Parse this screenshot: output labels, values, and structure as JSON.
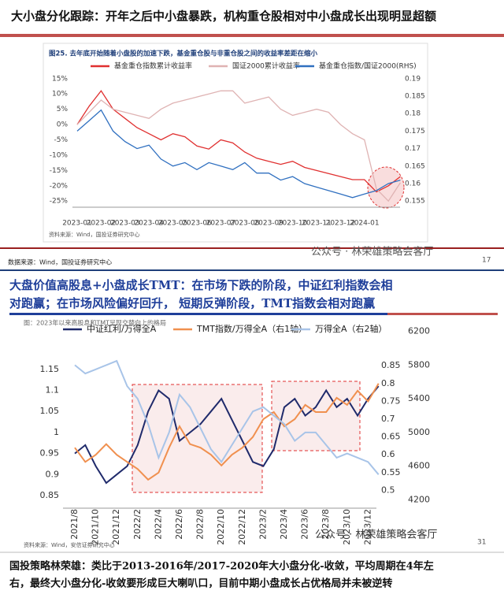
{
  "texts": {
    "title": "大小盘分化跟踪：开年之后中小盘暴跌，机构重仓股相对中小盘成长出现明显超额",
    "data_source": "数据来源：Wind，国投证券研究中心",
    "mid_title_1": "大盘价值高股息+小盘成长TMT：在市场下跌的阶段，中证红利指数会相",
    "mid_title_2": "对跑赢；在市场风险偏好回升， 短期反弹阶段，TMT指数会相对跑赢",
    "watermark": "公众号 · 林荣雄策略会客厅",
    "bottom_1": "国投策略林荣雄：类比于2013-2016年/2017-2020年大小盘分化-收敛，平均周期在4年左",
    "bottom_2": "右，最终大小盘分化-收敛要形成巨大喇叭口，目前中期小盘成长占优格局并未被逆转"
  },
  "chart_data": [
    {
      "type": "line",
      "title": "图25. 去年底开始随着小盘股的加速下跌，基金重仓股与非重仓股之间的收益率差距在缩小",
      "source": "资料来源：Wind，国投证券研究中心",
      "page": "17",
      "categories": [
        "2023-01",
        null,
        "2023-02",
        null,
        "2023-03",
        null,
        "2023-04",
        null,
        "2023-05",
        null,
        "2023-06",
        null,
        "2023-07",
        null,
        "2023-08",
        null,
        "2023-09",
        null,
        "2023-10",
        null,
        "2023-11",
        null,
        "2023-12",
        null,
        "2024-01",
        null,
        null,
        null
      ],
      "ylim": [
        -27,
        17
      ],
      "yticks": [
        {
          "value": 15,
          "label": "15%"
        },
        {
          "value": 10,
          "label": "10%"
        },
        {
          "value": 5,
          "label": "5%"
        },
        {
          "value": 0,
          "label": "0%"
        },
        {
          "value": -5,
          "label": "-5%"
        },
        {
          "value": -10,
          "label": "-10%"
        },
        {
          "value": -15,
          "label": "-15%"
        },
        {
          "value": -20,
          "label": "-20%"
        },
        {
          "value": -25,
          "label": "-25%"
        }
      ],
      "y2lim": [
        0.15325,
        0.19175
      ],
      "y2ticks": [
        0.19,
        0.185,
        0.18,
        0.175,
        0.17,
        0.165,
        0.16,
        0.155
      ],
      "series": [
        {
          "name": "基金重仓指数累计收益率",
          "color": "#e03030",
          "values": [
            0,
            6,
            11,
            5,
            2,
            -1,
            -3,
            -5,
            -3,
            -4,
            -7,
            -8,
            -5,
            -6,
            -9,
            -11,
            -12,
            -13,
            -12,
            -14,
            -15,
            -16,
            -17,
            -18,
            -18,
            -22,
            -20,
            -17
          ]
        },
        {
          "name": "国证2000累计收益率",
          "color": "#dfb3b3",
          "values": [
            0,
            4,
            8,
            5,
            4,
            3,
            2,
            5,
            7,
            8,
            9,
            10,
            11,
            11,
            7,
            8,
            9,
            5,
            3,
            4,
            5,
            4,
            0,
            -3,
            -5,
            -21,
            -25,
            -19
          ]
        },
        {
          "name": "基金重仓指数/国证2000(RHS)",
          "color": "#3070c0",
          "axis": "y2",
          "values": [
            0.175,
            0.178,
            0.181,
            0.175,
            0.172,
            0.17,
            0.171,
            0.167,
            0.165,
            0.166,
            0.164,
            0.166,
            0.165,
            0.164,
            0.166,
            0.163,
            0.163,
            0.161,
            0.162,
            0.16,
            0.159,
            0.158,
            0.157,
            0.156,
            0.157,
            0.158,
            0.16,
            0.161
          ]
        }
      ]
    },
    {
      "type": "line",
      "title": "图：2023年以来高股息和TMT呈现交替向上的格局",
      "source": "资料来源：Wind，安信证券研究中心",
      "page": "31",
      "categories": [
        "2021/8",
        null,
        "2021/10",
        null,
        "2021/12",
        null,
        "2022/2",
        null,
        "2022/4",
        null,
        "2022/6",
        null,
        "2022/8",
        null,
        "2022/10",
        null,
        "2022/12",
        null,
        "2023/2",
        null,
        "2023/4",
        null,
        "2023/6",
        null,
        "2023/8",
        null,
        "2023/10",
        null,
        "2023/12",
        null
      ],
      "ylim": [
        0.82,
        1.26
      ],
      "yticks": [
        1.15,
        1.1,
        1.05,
        1,
        0.95,
        0.9,
        0.85
      ],
      "y2lim": [
        0.45,
        0.97
      ],
      "y2ticks": [
        0.85,
        0.8,
        0.75,
        0.7,
        0.65,
        0.6,
        0.55,
        0.5
      ],
      "y3lim": [
        4100,
        6300
      ],
      "y3ticks": [
        6200,
        5800,
        5400,
        5000,
        4600,
        4200
      ],
      "series": [
        {
          "name": "中证红利/万得全A",
          "color": "#1f2a6b",
          "values": [
            0.95,
            0.97,
            0.92,
            0.88,
            0.9,
            0.92,
            0.97,
            1.05,
            1.1,
            1.08,
            0.98,
            1.0,
            1.02,
            1.05,
            1.08,
            1.03,
            0.98,
            0.93,
            0.92,
            0.96,
            1.06,
            1.08,
            1.04,
            1.06,
            1.1,
            1.06,
            1.08,
            1.04,
            1.08,
            1.11
          ]
        },
        {
          "name": "TMT指数/万得全A（右1轴）",
          "color": "#f0904f",
          "axis": "y2",
          "values": [
            0.62,
            0.58,
            0.6,
            0.63,
            0.6,
            0.58,
            0.56,
            0.53,
            0.55,
            0.62,
            0.68,
            0.63,
            0.62,
            0.6,
            0.57,
            0.6,
            0.62,
            0.65,
            0.7,
            0.72,
            0.68,
            0.7,
            0.74,
            0.72,
            0.72,
            0.76,
            0.74,
            0.78,
            0.75,
            0.8
          ]
        },
        {
          "name": "万得全A（右2轴）",
          "color": "#a8c4e8",
          "axis": "y3",
          "values": [
            5800,
            5700,
            5750,
            5800,
            5850,
            5550,
            5400,
            5100,
            4700,
            5000,
            5450,
            5300,
            5050,
            4800,
            4650,
            4850,
            5050,
            5250,
            5300,
            5200,
            5100,
            4900,
            5000,
            5000,
            4850,
            4700,
            4750,
            4700,
            4650,
            4500
          ]
        }
      ]
    }
  ]
}
